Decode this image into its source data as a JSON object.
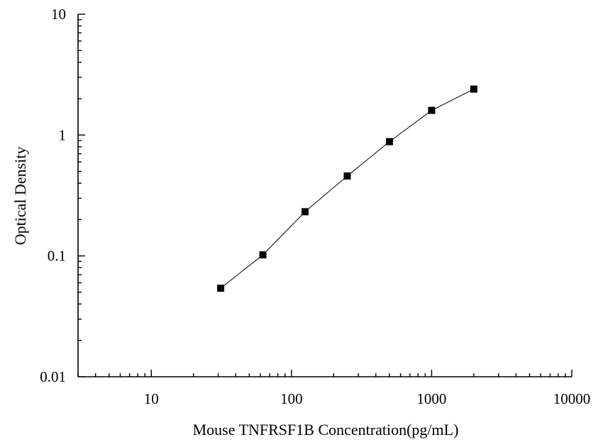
{
  "chart_data": {
    "type": "line",
    "title": "",
    "xlabel": "Mouse TNFRSF1B Concentration(pg/mL)",
    "ylabel": "Optical Density",
    "x_scale": "log",
    "y_scale": "log",
    "xlim": [
      3,
      10000
    ],
    "ylim": [
      0.01,
      10
    ],
    "x_ticks": [
      10,
      100,
      1000,
      10000
    ],
    "x_tick_labels": [
      "10",
      "100",
      "1000",
      "10000"
    ],
    "y_ticks": [
      0.01,
      0.1,
      1,
      10
    ],
    "y_tick_labels": [
      "0.01",
      "0.1",
      "1",
      "10"
    ],
    "grid": false,
    "legend": "none",
    "series": [
      {
        "x": [
          31.25,
          62.5,
          125,
          250,
          500,
          1000,
          2000
        ],
        "y": [
          0.054,
          0.102,
          0.232,
          0.458,
          0.882,
          1.6,
          2.4
        ],
        "marker": "square",
        "color": "#000000"
      }
    ]
  }
}
